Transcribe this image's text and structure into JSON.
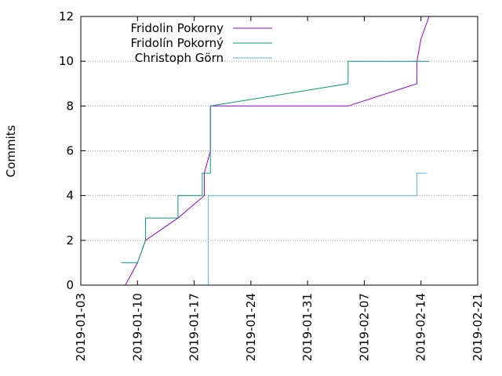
{
  "chart_data": {
    "type": "line",
    "title": "",
    "xlabel": "",
    "ylabel": "Commits",
    "xlim": [
      "2019-01-03",
      "2019-02-21"
    ],
    "ylim": [
      0,
      12
    ],
    "x_ticks": [
      "2019-01-03",
      "2019-01-10",
      "2019-01-17",
      "2019-01-24",
      "2019-01-31",
      "2019-02-07",
      "2019-02-14",
      "2019-02-21"
    ],
    "y_ticks": [
      0,
      2,
      4,
      6,
      8,
      10,
      12
    ],
    "grid": "horizontal dotted",
    "legend_position": "top-left",
    "series": [
      {
        "name": "Fridolin Pokorny",
        "color": "#9400d3",
        "points": [
          [
            "2019-01-08T12:00",
            0
          ],
          [
            "2019-01-10T00:00",
            1
          ],
          [
            "2019-01-11T00:00",
            2
          ],
          [
            "2019-01-15T00:00",
            3
          ],
          [
            "2019-01-18T06:00",
            4
          ],
          [
            "2019-01-18T06:00",
            5
          ],
          [
            "2019-01-19T00:00",
            6
          ],
          [
            "2019-01-19T00:00",
            8
          ],
          [
            "2019-02-05T00:00",
            8
          ],
          [
            "2019-02-13T12:00",
            9
          ],
          [
            "2019-02-13T12:00",
            10
          ],
          [
            "2019-02-14T00:00",
            11
          ],
          [
            "2019-02-15T00:00",
            12
          ]
        ]
      },
      {
        "name": "Fridolín Pokorný",
        "color": "#009e73",
        "points": [
          [
            "2019-01-08T00:00",
            1
          ],
          [
            "2019-01-10T00:00",
            1
          ],
          [
            "2019-01-11T00:00",
            2
          ],
          [
            "2019-01-11T00:00",
            3
          ],
          [
            "2019-01-15T00:00",
            3
          ],
          [
            "2019-01-15T00:00",
            4
          ],
          [
            "2019-01-18T00:00",
            4
          ],
          [
            "2019-01-18T00:00",
            5
          ],
          [
            "2019-01-19T00:00",
            5
          ],
          [
            "2019-01-19T00:00",
            8
          ],
          [
            "2019-02-05T00:00",
            9
          ],
          [
            "2019-02-05T00:00",
            10
          ],
          [
            "2019-02-15T00:00",
            10
          ]
        ]
      },
      {
        "name": "Christoph Görn",
        "color": "#56b4e9",
        "points": [
          [
            "2019-01-18T18:00",
            0
          ],
          [
            "2019-01-18T18:00",
            4
          ],
          [
            "2019-02-13T12:00",
            4
          ],
          [
            "2019-02-13T12:00",
            5
          ],
          [
            "2019-02-14T18:00",
            5
          ]
        ]
      }
    ]
  }
}
